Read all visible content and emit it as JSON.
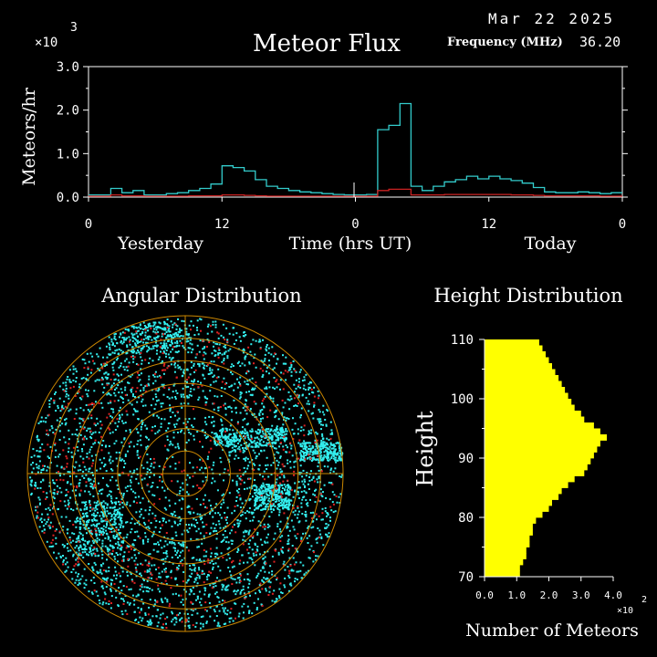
{
  "header": {
    "date": "Mar 22 2025",
    "title": "Meteor Flux",
    "frequency_label": "Frequency (MHz)",
    "frequency_value": "36.20",
    "y_multiplier_base": "×10",
    "y_multiplier_exp": "3"
  },
  "colors": {
    "background": "#000000",
    "axis": "#ffffff",
    "flux_series": "#33cccc",
    "secondary_series": "#cc2222",
    "grid": "#cc8800",
    "polar_blue": "#33eeee",
    "polar_red": "#dd2222",
    "histogram": "#ffff00"
  },
  "flux_x_axis": {
    "ticks": [
      "0",
      "12",
      "0",
      "12",
      "0"
    ],
    "left_label": "Yesterday",
    "center_label": "Time (hrs UT)",
    "right_label": "Today"
  },
  "angular": {
    "title": "Angular Distribution"
  },
  "height_dist": {
    "title": "Height Distribution",
    "ylabel": "Height",
    "xlabel": "Number of Meteors",
    "x_multiplier_base": "×10",
    "x_multiplier_exp": "2"
  },
  "chart_data": [
    {
      "type": "line",
      "ylabel": "Meteors/hr",
      "ylim": [
        0,
        3.0
      ],
      "y_ticks": [
        "0.0",
        "1.0",
        "2.0",
        "3.0"
      ],
      "xlim": [
        0,
        48
      ],
      "series": [
        {
          "color": "#33cccc",
          "x": [
            0,
            1,
            2,
            3,
            4,
            5,
            6,
            7,
            8,
            9,
            10,
            11,
            12,
            13,
            14,
            15,
            16,
            17,
            18,
            19,
            20,
            21,
            22,
            23,
            24,
            25,
            26,
            27,
            28,
            29,
            30,
            31,
            32,
            33,
            34,
            35,
            36,
            37,
            38,
            39,
            40,
            41,
            42,
            43,
            44,
            45,
            46,
            47,
            48
          ],
          "y": [
            0.05,
            0.05,
            0.2,
            0.1,
            0.15,
            0.05,
            0.05,
            0.08,
            0.1,
            0.15,
            0.2,
            0.3,
            0.72,
            0.68,
            0.6,
            0.4,
            0.25,
            0.2,
            0.15,
            0.12,
            0.1,
            0.08,
            0.06,
            0.05,
            0.05,
            0.06,
            1.55,
            1.65,
            2.15,
            0.25,
            0.15,
            0.25,
            0.35,
            0.4,
            0.48,
            0.42,
            0.48,
            0.42,
            0.38,
            0.32,
            0.22,
            0.12,
            0.1,
            0.1,
            0.12,
            0.1,
            0.08,
            0.1,
            0.1
          ]
        },
        {
          "color": "#cc2222",
          "x": [
            0,
            1,
            2,
            3,
            4,
            5,
            6,
            7,
            8,
            9,
            10,
            11,
            12,
            13,
            14,
            15,
            16,
            17,
            18,
            19,
            20,
            21,
            22,
            23,
            24,
            25,
            26,
            27,
            28,
            29,
            30,
            31,
            32,
            33,
            34,
            35,
            36,
            37,
            38,
            39,
            40,
            41,
            42,
            43,
            44,
            45,
            46,
            47,
            48
          ],
          "y": [
            0.02,
            0.02,
            0.05,
            0.03,
            0.03,
            0.02,
            0.02,
            0.02,
            0.02,
            0.03,
            0.03,
            0.03,
            0.05,
            0.05,
            0.04,
            0.03,
            0.02,
            0.02,
            0.02,
            0.02,
            0.02,
            0.02,
            0.02,
            0.02,
            0.02,
            0.02,
            0.15,
            0.18,
            0.18,
            0.05,
            0.05,
            0.05,
            0.06,
            0.06,
            0.06,
            0.06,
            0.06,
            0.06,
            0.05,
            0.05,
            0.04,
            0.03,
            0.03,
            0.03,
            0.03,
            0.03,
            0.02,
            0.02,
            0.02
          ]
        }
      ]
    },
    {
      "type": "bar",
      "orientation": "horizontal",
      "ylim": [
        70,
        110
      ],
      "xlim": [
        0,
        4.0
      ],
      "y_ticks": [
        "70",
        "80",
        "90",
        "100",
        "110"
      ],
      "x_ticks": [
        "0.0",
        "1.0",
        "2.0",
        "3.0",
        "4.0"
      ],
      "heights": [
        70,
        71,
        72,
        73,
        74,
        75,
        76,
        77,
        78,
        79,
        80,
        81,
        82,
        83,
        84,
        85,
        86,
        87,
        88,
        89,
        90,
        91,
        92,
        93,
        94,
        95,
        96,
        97,
        98,
        99,
        100,
        101,
        102,
        103,
        104,
        105,
        106,
        107,
        108,
        109
      ],
      "values": [
        1.1,
        1.1,
        1.2,
        1.3,
        1.3,
        1.4,
        1.4,
        1.5,
        1.5,
        1.6,
        1.8,
        2.0,
        2.1,
        2.3,
        2.4,
        2.6,
        2.8,
        3.1,
        3.2,
        3.3,
        3.4,
        3.5,
        3.6,
        3.8,
        3.6,
        3.4,
        3.1,
        3.0,
        2.8,
        2.7,
        2.6,
        2.5,
        2.4,
        2.3,
        2.2,
        2.1,
        2.0,
        1.9,
        1.8,
        1.7
      ]
    }
  ]
}
